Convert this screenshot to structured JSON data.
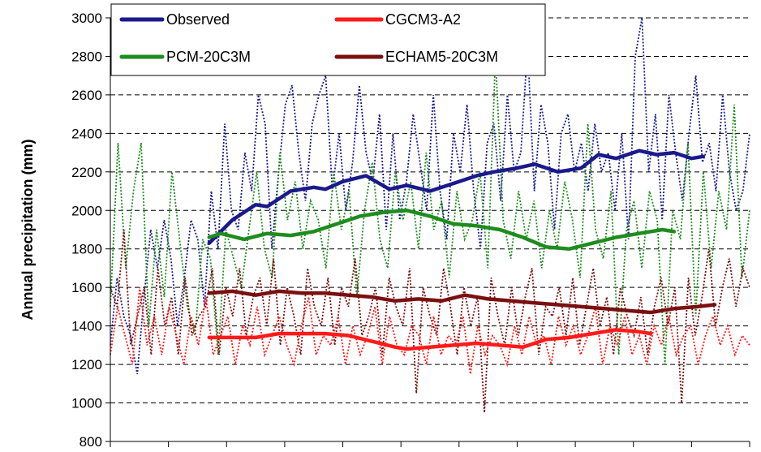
{
  "chart_data": {
    "type": "line",
    "title": "",
    "xlabel": "",
    "ylabel": "Annual precipitation (mm)",
    "ylim": [
      800,
      3000
    ],
    "yticks": [
      800,
      1000,
      1200,
      1400,
      1600,
      1800,
      2000,
      2200,
      2400,
      2600,
      2800,
      3000
    ],
    "xlim": [
      0,
      110
    ],
    "grid": "horizontal dashed",
    "legend_placement": "top-left",
    "legend": [
      {
        "name": "Observed",
        "color": "#1a1a8c"
      },
      {
        "name": "CGCM3-A2",
        "color": "#ff1a1a"
      },
      {
        "name": "PCM-20C3M",
        "color": "#1e8c1e"
      },
      {
        "name": "ECHAM5-20C3M",
        "color": "#7a1010"
      }
    ],
    "series": [
      {
        "name": "Observed",
        "color": "#1a1a8c",
        "style": "dotted annual values with bold moving average",
        "annual": [
          1300,
          1650,
          1450,
          1350,
          1150,
          1550,
          1900,
          1700,
          1950,
          1750,
          1400,
          1650,
          1950,
          1850,
          1500,
          2100,
          1800,
          2450,
          2000,
          1900,
          2300,
          2100,
          2600,
          2450,
          1800,
          2200,
          2550,
          2650,
          2300,
          2050,
          2450,
          2600,
          2700,
          2100,
          2400,
          2000,
          2250,
          2650,
          2300,
          2150,
          2500,
          1900,
          2400,
          1950,
          2150,
          2500,
          2250,
          2000,
          2600,
          2100,
          1850,
          2400,
          2200,
          2550,
          2100,
          1800,
          2350,
          2450,
          2050,
          2600,
          2200,
          2300,
          2850,
          2100,
          2550,
          2350,
          1900,
          2400,
          2500,
          2200,
          2350,
          2100,
          2450,
          2200,
          2300,
          2000,
          2400,
          1850,
          2800,
          3000,
          2200,
          2500,
          1950,
          2600,
          2300,
          2050,
          2400,
          2700,
          2250,
          2350,
          2100,
          2600,
          2200,
          2000,
          2100,
          2400
        ],
        "moving_average": [
          [
            17,
            1830
          ],
          [
            21,
            1950
          ],
          [
            25,
            2030
          ],
          [
            27,
            2020
          ],
          [
            31,
            2100
          ],
          [
            35,
            2120
          ],
          [
            37,
            2110
          ],
          [
            40,
            2150
          ],
          [
            44,
            2180
          ],
          [
            48,
            2110
          ],
          [
            51,
            2130
          ],
          [
            55,
            2100
          ],
          [
            59,
            2140
          ],
          [
            63,
            2180
          ],
          [
            66,
            2200
          ],
          [
            70,
            2220
          ],
          [
            73,
            2240
          ],
          [
            77,
            2200
          ],
          [
            81,
            2220
          ],
          [
            84,
            2290
          ],
          [
            87,
            2270
          ],
          [
            91,
            2310
          ],
          [
            94,
            2290
          ],
          [
            97,
            2300
          ],
          [
            100,
            2270
          ],
          [
            102,
            2280
          ]
        ]
      },
      {
        "name": "PCM-20C3M",
        "color": "#1e8c1e",
        "style": "dotted annual values with bold moving average",
        "annual": [
          1500,
          2350,
          1700,
          2100,
          2350,
          1400,
          1900,
          1550,
          2200,
          1850,
          1500,
          1350,
          1850,
          1750,
          1250,
          1900,
          1750,
          1600,
          1900,
          2200,
          1800,
          1650,
          2300,
          1950,
          2150,
          1800,
          2050,
          1950,
          1700,
          2200,
          1900,
          2100,
          1550,
          2000,
          2250,
          1850,
          1700,
          2200,
          1950,
          2150,
          1800,
          2300,
          1900,
          2050,
          1650,
          2100,
          1850,
          1950,
          2200,
          1700,
          2800,
          1950,
          1750,
          2100,
          1850,
          2050,
          1700,
          2000,
          1800,
          2150,
          1950,
          1650,
          2450,
          1900,
          1750,
          2100,
          1250,
          1900,
          2050,
          1700,
          2100,
          1950,
          1200,
          2000,
          1850,
          2350,
          1450,
          2200,
          1700,
          2100,
          1900,
          2550,
          1650,
          2000
        ],
        "moving_average": [
          [
            17,
            1860
          ],
          [
            19,
            1880
          ],
          [
            23,
            1850
          ],
          [
            27,
            1880
          ],
          [
            31,
            1870
          ],
          [
            35,
            1890
          ],
          [
            39,
            1930
          ],
          [
            43,
            1970
          ],
          [
            47,
            1990
          ],
          [
            51,
            2000
          ],
          [
            55,
            1970
          ],
          [
            59,
            1930
          ],
          [
            63,
            1920
          ],
          [
            67,
            1900
          ],
          [
            71,
            1860
          ],
          [
            75,
            1810
          ],
          [
            79,
            1800
          ],
          [
            83,
            1830
          ],
          [
            87,
            1860
          ],
          [
            91,
            1880
          ],
          [
            95,
            1900
          ],
          [
            97,
            1890
          ]
        ]
      },
      {
        "name": "ECHAM5-20C3M",
        "color": "#7a1010",
        "style": "dotted annual values with bold moving average",
        "annual": [
          1600,
          1500,
          1900,
          1300,
          1450,
          1600,
          1250,
          1700,
          1400,
          1550,
          1250,
          1650,
          1350,
          1450,
          1500,
          1700,
          1250,
          1600,
          1450,
          1700,
          1350,
          1550,
          1650,
          1400,
          1750,
          1300,
          1600,
          1450,
          1250,
          1700,
          1500,
          1400,
          1650,
          1300,
          1600,
          1500,
          1750,
          1350,
          1450,
          1600,
          1250,
          1650,
          1500,
          1400,
          1700,
          1050,
          1600,
          1450,
          1350,
          1700,
          1500,
          1250,
          1600,
          1400,
          1550,
          950,
          1650,
          1450,
          1300,
          1600,
          1350,
          1550,
          1700,
          1250,
          1500,
          1450,
          1600,
          1350,
          1650,
          1300,
          1500,
          1700,
          1400,
          1550,
          1250,
          1600,
          1450,
          1350,
          1550,
          1250,
          1500,
          1650,
          1400,
          1600,
          1000,
          1650,
          1350,
          1550,
          1800,
          1400,
          1600,
          1750,
          1500,
          1700,
          1600
        ],
        "moving_average": [
          [
            17,
            1570
          ],
          [
            21,
            1580
          ],
          [
            25,
            1560
          ],
          [
            29,
            1580
          ],
          [
            33,
            1570
          ],
          [
            37,
            1570
          ],
          [
            41,
            1560
          ],
          [
            45,
            1550
          ],
          [
            49,
            1530
          ],
          [
            53,
            1540
          ],
          [
            57,
            1530
          ],
          [
            61,
            1560
          ],
          [
            65,
            1540
          ],
          [
            69,
            1530
          ],
          [
            73,
            1520
          ],
          [
            77,
            1510
          ],
          [
            81,
            1500
          ],
          [
            85,
            1490
          ],
          [
            89,
            1480
          ],
          [
            93,
            1470
          ],
          [
            97,
            1490
          ],
          [
            101,
            1500
          ],
          [
            104,
            1510
          ]
        ]
      },
      {
        "name": "CGCM3-A2",
        "color": "#ff1a1a",
        "style": "dotted annual values with bold moving average",
        "annual": [
          1250,
          1500,
          1350,
          1200,
          1600,
          1300,
          1450,
          1250,
          1500,
          1350,
          1200,
          1450,
          1300,
          1550,
          1250,
          1350,
          1450,
          1200,
          1400,
          1300,
          1500,
          1250,
          1350,
          1450,
          1300,
          1200,
          1400,
          1550,
          1250,
          1350,
          1300,
          1450,
          1200,
          1400,
          1250,
          1350,
          1500,
          1200,
          1450,
          1300,
          1250,
          1400,
          1350,
          1200,
          1450,
          1250,
          1350,
          1300,
          1450,
          1150,
          1400,
          1250,
          1350,
          1300,
          1200,
          1400,
          1250,
          1450,
          1300,
          1350,
          1200,
          1450,
          1300,
          1400,
          1250,
          1350,
          1500,
          1200,
          1400,
          1300,
          1450,
          1250,
          1350,
          1200,
          1400,
          1300,
          1450,
          1250,
          1350,
          1400,
          1200,
          1350,
          1450,
          1300,
          1400,
          1250,
          1350,
          1300
        ],
        "moving_average": [
          [
            17,
            1340
          ],
          [
            21,
            1340
          ],
          [
            25,
            1340
          ],
          [
            29,
            1360
          ],
          [
            33,
            1360
          ],
          [
            37,
            1360
          ],
          [
            41,
            1350
          ],
          [
            45,
            1320
          ],
          [
            49,
            1290
          ],
          [
            51,
            1280
          ],
          [
            55,
            1290
          ],
          [
            59,
            1300
          ],
          [
            63,
            1310
          ],
          [
            67,
            1300
          ],
          [
            71,
            1290
          ],
          [
            75,
            1330
          ],
          [
            79,
            1340
          ],
          [
            83,
            1360
          ],
          [
            87,
            1380
          ],
          [
            91,
            1370
          ],
          [
            93,
            1360
          ]
        ]
      }
    ]
  }
}
